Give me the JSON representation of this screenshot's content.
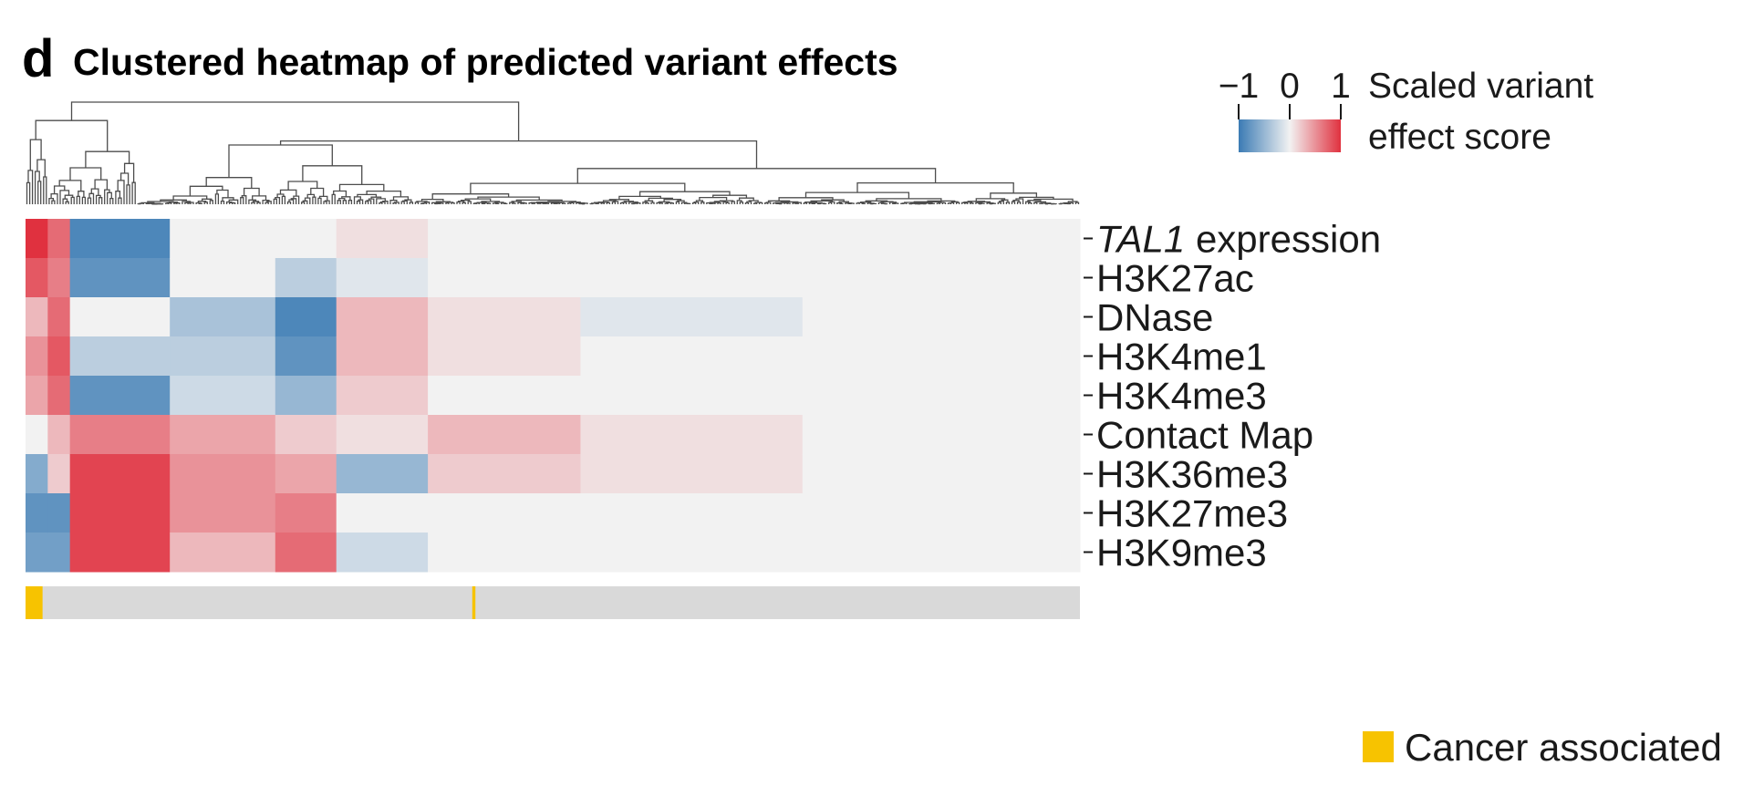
{
  "figure": {
    "panel_letter": "d",
    "title": "Clustered heatmap of predicted variant effects"
  },
  "colors": {
    "negative": "#3b7bb4",
    "neutral": "#f2f2f2",
    "positive": "#e0313f",
    "cancer_associated": "#f7c300",
    "not_cancer": "#d9d9d9",
    "dendrogram": "#4d4d4d"
  },
  "chart_data": {
    "type": "heatmap",
    "title": "Clustered heatmap of predicted variant effects",
    "rows": [
      "TAL1 expression",
      "H3K27ac",
      "DNase",
      "H3K4me1",
      "H3K4me3",
      "Contact Map",
      "H3K36me3",
      "H3K27me3",
      "H3K9me3"
    ],
    "row_label_italic_part": {
      "TAL1 expression": "TAL1"
    },
    "n_variants": 380,
    "value_range": [
      -1,
      1
    ],
    "colorbar": {
      "ticks": [
        "−1",
        "0",
        "1"
      ],
      "label_line1": "Scaled variant",
      "label_line2": "effect score",
      "position": "top-right"
    },
    "column_segments": [
      {
        "from": 0,
        "to": 8,
        "values": [
          1.0,
          0.8,
          0.3,
          0.5,
          0.4,
          0.0,
          -0.6,
          -0.8,
          -0.7
        ]
      },
      {
        "from": 8,
        "to": 16,
        "values": [
          0.7,
          0.6,
          0.7,
          0.8,
          0.7,
          0.3,
          0.2,
          -0.8,
          -0.7
        ]
      },
      {
        "from": 16,
        "to": 52,
        "values": [
          -0.9,
          -0.8,
          0.0,
          -0.3,
          -0.8,
          0.6,
          0.9,
          0.9,
          0.9
        ]
      },
      {
        "from": 52,
        "to": 90,
        "values": [
          0.0,
          0.0,
          -0.4,
          -0.3,
          -0.2,
          0.4,
          0.5,
          0.5,
          0.3
        ]
      },
      {
        "from": 90,
        "to": 112,
        "values": [
          0.0,
          -0.3,
          -0.9,
          -0.8,
          -0.5,
          0.2,
          0.4,
          0.6,
          0.7
        ]
      },
      {
        "from": 112,
        "to": 145,
        "values": [
          0.1,
          -0.1,
          0.3,
          0.3,
          0.2,
          0.1,
          -0.5,
          0.0,
          -0.2
        ]
      },
      {
        "from": 145,
        "to": 200,
        "values": [
          0.0,
          0.0,
          0.1,
          0.1,
          0.0,
          0.3,
          0.2,
          0.0,
          0.0
        ]
      },
      {
        "from": 200,
        "to": 280,
        "values": [
          0.0,
          0.0,
          -0.1,
          0.0,
          0.0,
          0.1,
          0.1,
          0.0,
          0.0
        ]
      },
      {
        "from": 280,
        "to": 380,
        "values": [
          0.0,
          0.0,
          0.0,
          0.0,
          0.0,
          0.0,
          0.0,
          0.0,
          0.0
        ]
      }
    ],
    "annotation_row": {
      "label": "Cancer associated",
      "positive_columns": [
        0,
        1,
        2,
        3,
        4,
        5,
        161
      ]
    },
    "dendrogram": "hierarchical clustering of variant columns"
  }
}
